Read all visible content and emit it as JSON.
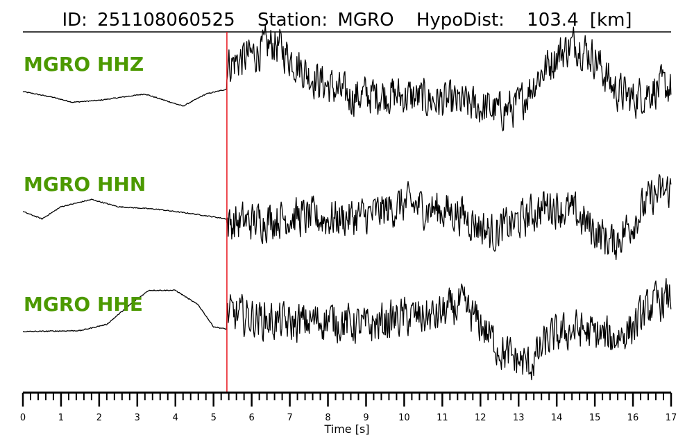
{
  "title": {
    "id_label": "ID:",
    "id_value": "251108060525",
    "station_label": "Station:",
    "station_value": "MGRO",
    "dist_label": "HypoDist:",
    "dist_value": "103.4",
    "dist_unit": "[km]"
  },
  "colors": {
    "label": "#4c9900",
    "trace": "#000000",
    "pick": "#e8141c",
    "axis": "#000000"
  },
  "chart_data": {
    "type": "line",
    "xlabel": "Time [s]",
    "xlim": [
      0,
      17
    ],
    "major_ticks": [
      0,
      1,
      2,
      3,
      4,
      5,
      6,
      7,
      8,
      9,
      10,
      11,
      12,
      13,
      14,
      15,
      16,
      17
    ],
    "minor_tick_step": 0.2,
    "pick_time": 5.35,
    "series": [
      {
        "name": "MGRO HHZ",
        "pre_event": [
          [
            0,
            0.0
          ],
          [
            0.8,
            -0.12
          ],
          [
            1.3,
            -0.22
          ],
          [
            2.0,
            -0.18
          ],
          [
            3.2,
            -0.05
          ],
          [
            4.2,
            -0.3
          ],
          [
            4.8,
            -0.05
          ],
          [
            5.35,
            0.05
          ]
        ],
        "envelope": [
          [
            5.35,
            0.55
          ],
          [
            6.0,
            0.75
          ],
          [
            6.6,
            1.0
          ],
          [
            7.5,
            0.35
          ],
          [
            8.5,
            -0.1
          ],
          [
            9.5,
            -0.05
          ],
          [
            10.5,
            -0.15
          ],
          [
            11.5,
            -0.25
          ],
          [
            12.5,
            -0.4
          ],
          [
            13.0,
            -0.3
          ],
          [
            13.5,
            0.3
          ],
          [
            14.0,
            0.75
          ],
          [
            14.5,
            1.0
          ],
          [
            15.0,
            0.7
          ],
          [
            15.5,
            0.05
          ],
          [
            16.0,
            -0.15
          ],
          [
            16.5,
            0.05
          ],
          [
            17.0,
            0.1
          ]
        ],
        "noise": 0.55
      },
      {
        "name": "MGRO HHN",
        "pre_event": [
          [
            0,
            0.0
          ],
          [
            0.5,
            -0.15
          ],
          [
            1.0,
            0.1
          ],
          [
            1.8,
            0.25
          ],
          [
            2.5,
            0.1
          ],
          [
            3.5,
            0.05
          ],
          [
            4.5,
            -0.05
          ],
          [
            5.35,
            -0.15
          ]
        ],
        "envelope": [
          [
            5.35,
            -0.25
          ],
          [
            6.0,
            -0.2
          ],
          [
            7.0,
            -0.1
          ],
          [
            8.0,
            -0.15
          ],
          [
            9.0,
            -0.1
          ],
          [
            10.0,
            0.15
          ],
          [
            10.8,
            0.05
          ],
          [
            11.5,
            -0.05
          ],
          [
            12.3,
            -0.45
          ],
          [
            13.0,
            -0.2
          ],
          [
            13.8,
            0.15
          ],
          [
            14.5,
            -0.05
          ],
          [
            15.0,
            -0.4
          ],
          [
            15.5,
            -0.65
          ],
          [
            16.0,
            -0.2
          ],
          [
            16.5,
            0.3
          ],
          [
            17.0,
            0.45
          ]
        ],
        "noise": 0.55
      },
      {
        "name": "MGRO HHE",
        "pre_event": [
          [
            0,
            0.0
          ],
          [
            1.5,
            0.02
          ],
          [
            2.2,
            0.15
          ],
          [
            2.8,
            0.55
          ],
          [
            3.3,
            0.85
          ],
          [
            4.0,
            0.85
          ],
          [
            4.6,
            0.55
          ],
          [
            5.0,
            0.1
          ],
          [
            5.35,
            0.05
          ]
        ],
        "envelope": [
          [
            5.35,
            0.35
          ],
          [
            6.0,
            0.3
          ],
          [
            7.0,
            0.15
          ],
          [
            8.0,
            0.25
          ],
          [
            9.0,
            0.1
          ],
          [
            10.0,
            0.3
          ],
          [
            10.8,
            0.3
          ],
          [
            11.5,
            0.55
          ],
          [
            12.0,
            0.15
          ],
          [
            12.6,
            -0.45
          ],
          [
            13.3,
            -0.7
          ],
          [
            13.8,
            -0.15
          ],
          [
            14.5,
            0.05
          ],
          [
            15.0,
            -0.05
          ],
          [
            15.5,
            -0.15
          ],
          [
            16.0,
            0.1
          ],
          [
            16.5,
            0.55
          ],
          [
            17.0,
            0.7
          ]
        ],
        "noise": 0.55
      }
    ]
  }
}
